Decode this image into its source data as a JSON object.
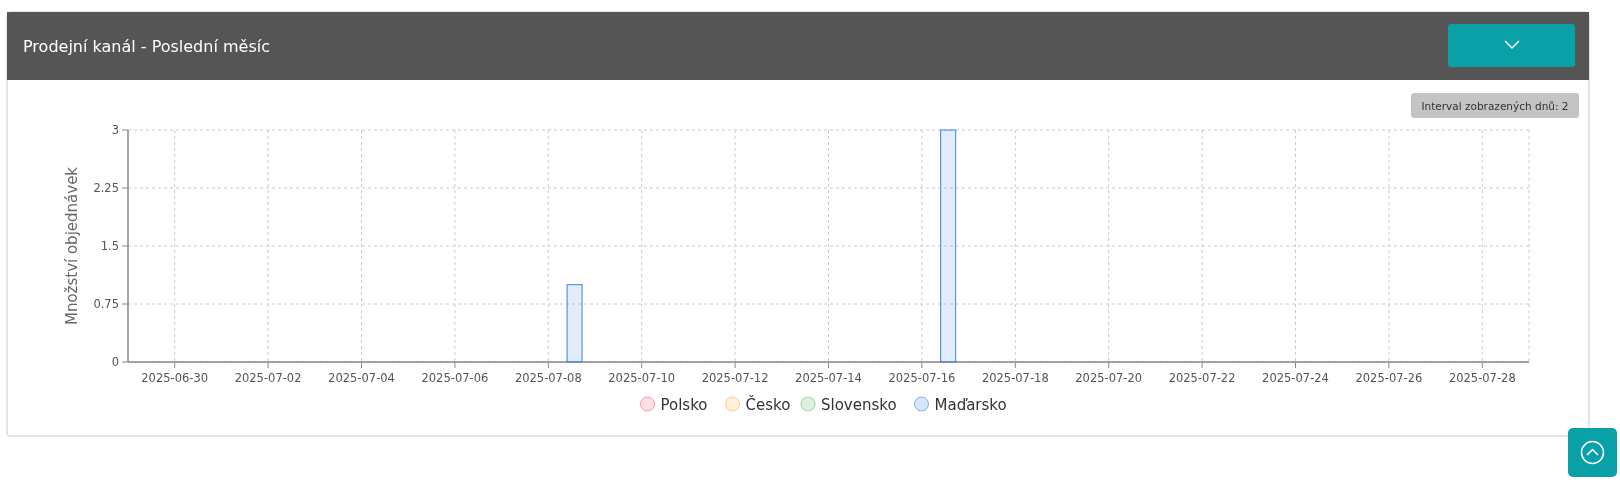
{
  "chart_data": {
    "type": "bar",
    "title": "Prodejní kanál - Poslední měsíc",
    "ylabel": "Množství objednávek",
    "annotations": [
      "Interval zobrazených dnů: 2"
    ],
    "x": [
      "2025-07-08T13:30",
      "2025-07-16T13:30"
    ],
    "series": [
      {
        "name": "Polsko",
        "color": "#ff6384",
        "values": [
          null,
          null
        ]
      },
      {
        "name": "Česko",
        "color": "#ffb347",
        "values": [
          null,
          null
        ]
      },
      {
        "name": "Slovensko",
        "color": "#5cb85c",
        "values": [
          null,
          null
        ]
      },
      {
        "name": "Maďarsko",
        "color": "#3b82e0",
        "values": [
          1,
          3
        ]
      }
    ],
    "xlim": [
      "2025-06-29",
      "2025-07-29"
    ],
    "xticks": [
      "2025-06-30",
      "2025-07-02",
      "2025-07-04",
      "2025-07-06",
      "2025-07-08",
      "2025-07-10",
      "2025-07-12",
      "2025-07-14",
      "2025-07-16",
      "2025-07-18",
      "2025-07-20",
      "2025-07-22",
      "2025-07-24",
      "2025-07-26",
      "2025-07-28"
    ],
    "ylim": [
      0,
      3
    ],
    "yticks": [
      0,
      0.75,
      1.5,
      2.25,
      3
    ],
    "grid": true,
    "legend": "bottom"
  }
}
